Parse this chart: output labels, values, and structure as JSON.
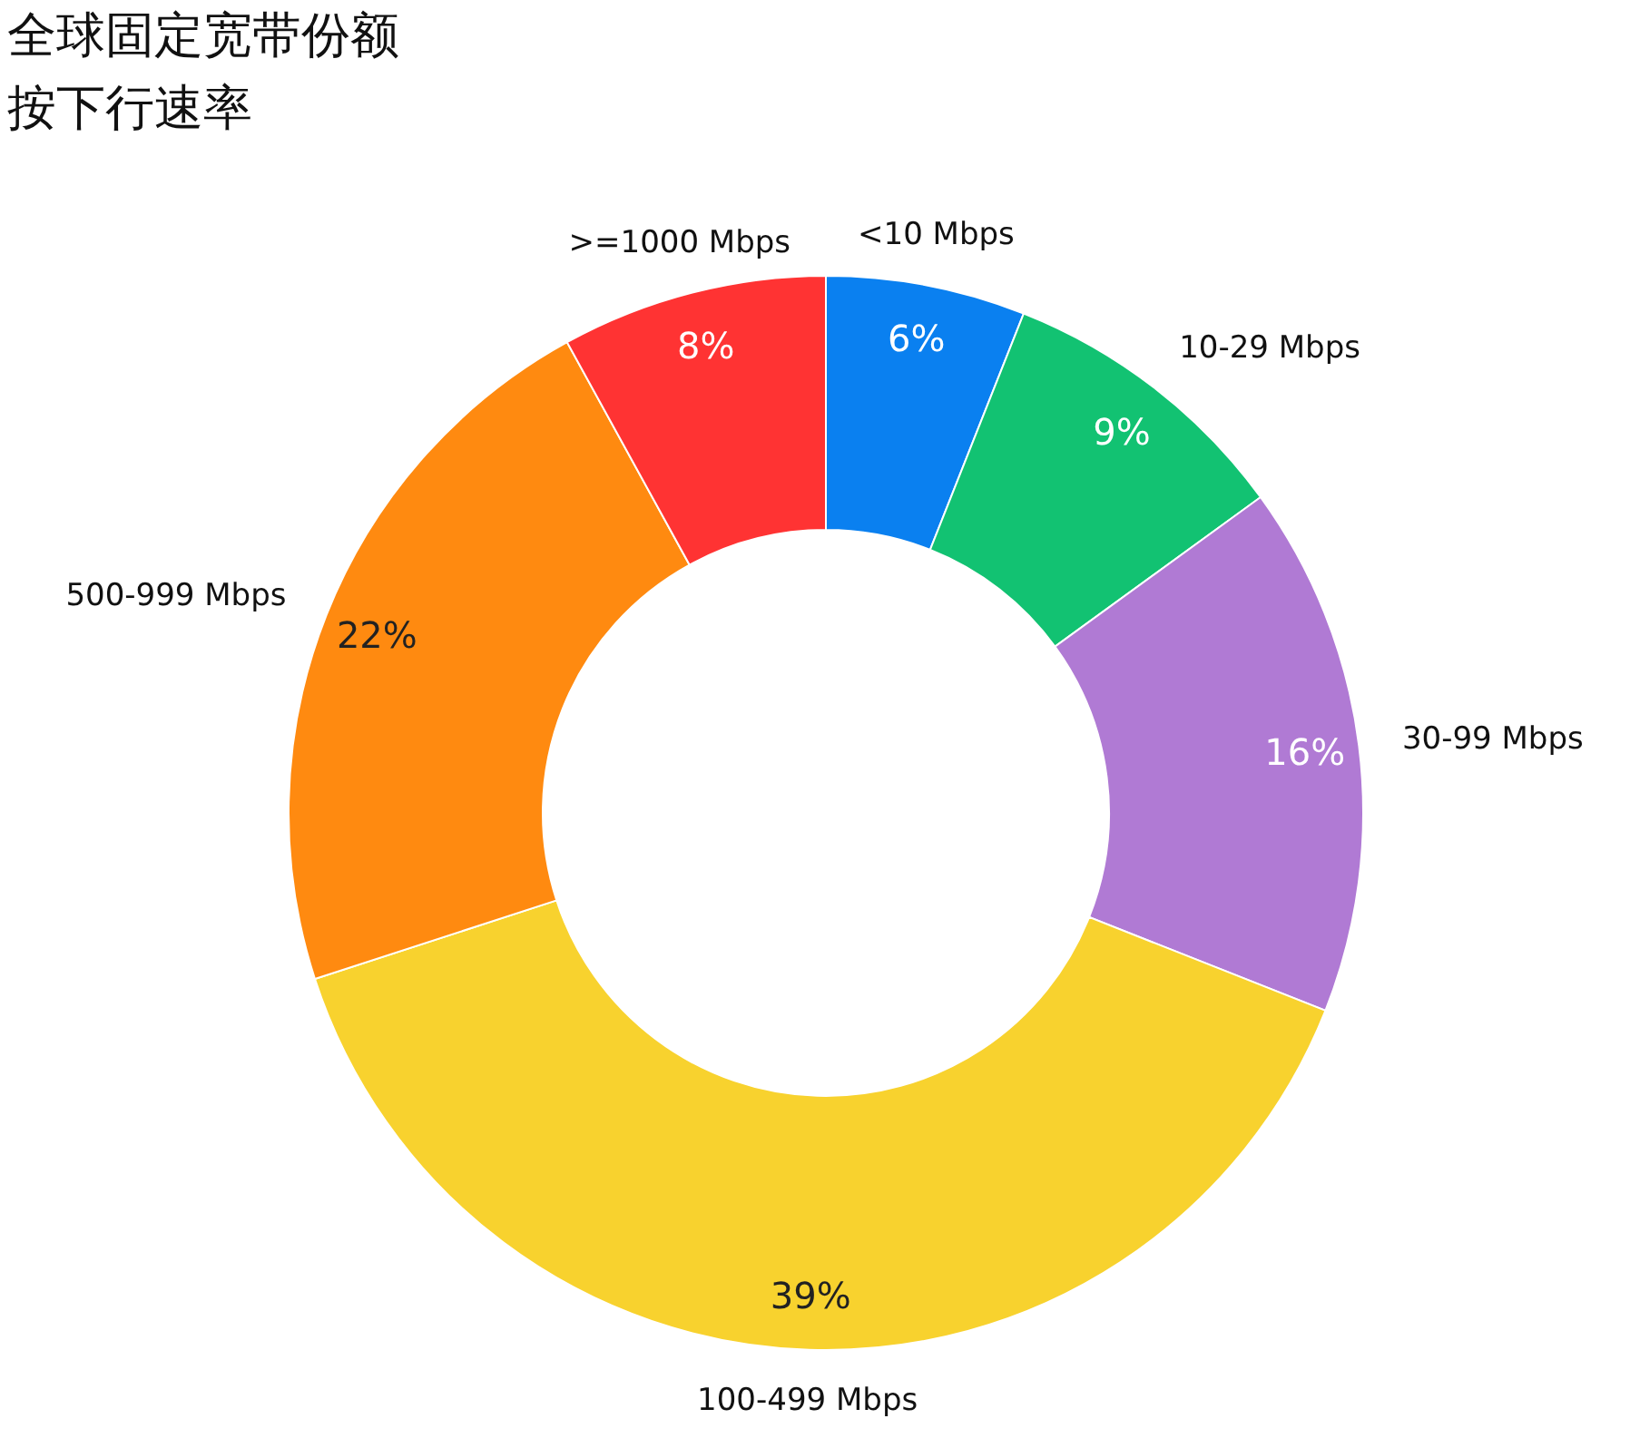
{
  "chart_data": {
    "type": "donut",
    "title": "全球固定宽带份额",
    "subtitle": "按下行速率",
    "categories": [
      "<10 Mbps",
      "10-29 Mbps",
      "30-99 Mbps",
      "100-499 Mbps",
      "500-999 Mbps",
      ">=1000 Mbps"
    ],
    "values": [
      6,
      9,
      16,
      39,
      22,
      8
    ],
    "value_labels": [
      "6%",
      "9%",
      "16%",
      "39%",
      "22%",
      "8%"
    ],
    "colors": [
      "#0a80f0",
      "#12c272",
      "#b07ad4",
      "#f8d22e",
      "#ff8a10",
      "#ff3333"
    ]
  }
}
